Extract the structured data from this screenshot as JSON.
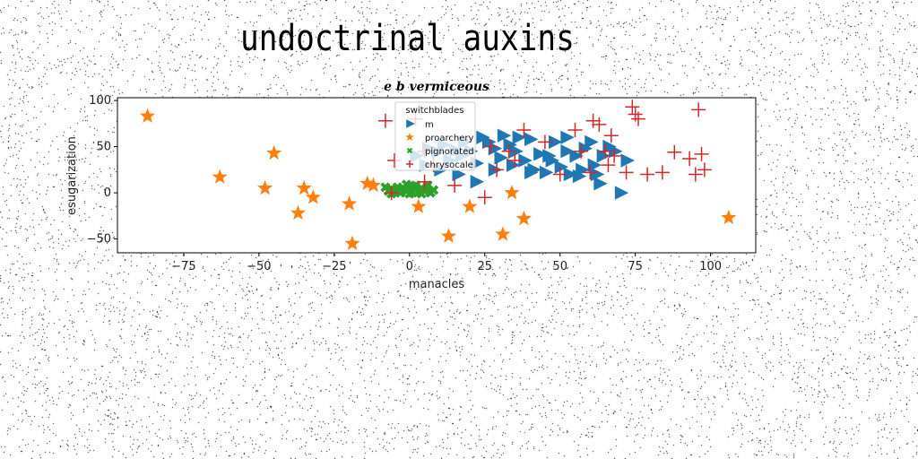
{
  "page": {
    "title": "undoctrinal auxins"
  },
  "chart_data": {
    "type": "scatter",
    "title": "e b vermiceous",
    "xlabel": "manacles",
    "ylabel": "esugarization",
    "xlim": [
      -97,
      115
    ],
    "ylim": [
      -65,
      103
    ],
    "xticks": [
      -75,
      -50,
      -25,
      0,
      25,
      50,
      75,
      100
    ],
    "yticks": [
      -50,
      0,
      50,
      100
    ],
    "xtick_labels": [
      "−75",
      "−50",
      "−25",
      "0",
      "25",
      "50",
      "75",
      "100"
    ],
    "ytick_labels": [
      "−50",
      "0",
      "50",
      "100"
    ],
    "grid": false,
    "legend": {
      "title": "switchblades",
      "position": "top-center"
    },
    "series": [
      {
        "name": "m",
        "marker": "triangle-right",
        "color": "#1f77b4",
        "points": [
          [
            2,
            40
          ],
          [
            6,
            48
          ],
          [
            9,
            44
          ],
          [
            11,
            52
          ],
          [
            13,
            35
          ],
          [
            15,
            46
          ],
          [
            17,
            40
          ],
          [
            18,
            55
          ],
          [
            20,
            45
          ],
          [
            22,
            32
          ],
          [
            24,
            60
          ],
          [
            26,
            55
          ],
          [
            28,
            48
          ],
          [
            30,
            38
          ],
          [
            31,
            62
          ],
          [
            33,
            52
          ],
          [
            35,
            45
          ],
          [
            36,
            60
          ],
          [
            38,
            35
          ],
          [
            40,
            58
          ],
          [
            41,
            25
          ],
          [
            43,
            42
          ],
          [
            45,
            22
          ],
          [
            47,
            35
          ],
          [
            48,
            55
          ],
          [
            50,
            28
          ],
          [
            52,
            60
          ],
          [
            53,
            20
          ],
          [
            55,
            40
          ],
          [
            57,
            25
          ],
          [
            58,
            48
          ],
          [
            60,
            55
          ],
          [
            61,
            30
          ],
          [
            62,
            20
          ],
          [
            64,
            40
          ],
          [
            66,
            50
          ],
          [
            68,
            45
          ],
          [
            70,
            0
          ],
          [
            72,
            35
          ],
          [
            5,
            30
          ],
          [
            10,
            25
          ],
          [
            16,
            20
          ],
          [
            22,
            12
          ],
          [
            28,
            25
          ],
          [
            34,
            30
          ],
          [
            40,
            22
          ],
          [
            46,
            40
          ],
          [
            52,
            45
          ],
          [
            56,
            18
          ],
          [
            63,
            10
          ]
        ]
      },
      {
        "name": "proarchery",
        "marker": "star",
        "color": "#ff7f0e",
        "points": [
          [
            -87,
            83
          ],
          [
            -63,
            17
          ],
          [
            -45,
            43
          ],
          [
            -48,
            5
          ],
          [
            -35,
            5
          ],
          [
            -32,
            -5
          ],
          [
            -37,
            -22
          ],
          [
            -20,
            -12
          ],
          [
            -14,
            10
          ],
          [
            -12,
            8
          ],
          [
            -19,
            -55
          ],
          [
            3,
            -15
          ],
          [
            13,
            -47
          ],
          [
            20,
            -15
          ],
          [
            31,
            -45
          ],
          [
            34,
            0
          ],
          [
            38,
            -28
          ],
          [
            106,
            -27
          ]
        ]
      },
      {
        "name": "pignorated",
        "marker": "x",
        "color": "#2ca02c",
        "points": [
          [
            -7,
            2
          ],
          [
            -6,
            4
          ],
          [
            -5,
            1
          ],
          [
            -4,
            6
          ],
          [
            -3,
            3
          ],
          [
            -2,
            5
          ],
          [
            -1,
            2
          ],
          [
            0,
            6
          ],
          [
            1,
            0
          ],
          [
            2,
            4
          ],
          [
            3,
            1
          ],
          [
            4,
            5
          ],
          [
            5,
            2
          ],
          [
            6,
            4
          ],
          [
            7,
            0
          ],
          [
            -8,
            6
          ],
          [
            -6,
            -1
          ],
          [
            -3,
            0
          ],
          [
            0,
            -1
          ],
          [
            2,
            8
          ],
          [
            4,
            -1
          ],
          [
            6,
            8
          ],
          [
            8,
            3
          ],
          [
            -1,
            9
          ],
          [
            1,
            7
          ]
        ]
      },
      {
        "name": "chrysocale",
        "marker": "plus",
        "color": "#d62728",
        "points": [
          [
            -8,
            78
          ],
          [
            -5,
            35
          ],
          [
            -6,
            0
          ],
          [
            2,
            80
          ],
          [
            5,
            45
          ],
          [
            8,
            30
          ],
          [
            5,
            12
          ],
          [
            15,
            8
          ],
          [
            25,
            -5
          ],
          [
            27,
            50
          ],
          [
            29,
            25
          ],
          [
            33,
            45
          ],
          [
            35,
            35
          ],
          [
            38,
            68
          ],
          [
            45,
            55
          ],
          [
            50,
            20
          ],
          [
            55,
            68
          ],
          [
            57,
            45
          ],
          [
            60,
            22
          ],
          [
            61,
            78
          ],
          [
            63,
            74
          ],
          [
            65,
            45
          ],
          [
            66,
            30
          ],
          [
            67,
            62
          ],
          [
            68,
            40
          ],
          [
            72,
            22
          ],
          [
            74,
            93
          ],
          [
            75,
            85
          ],
          [
            76,
            80
          ],
          [
            79,
            20
          ],
          [
            84,
            22
          ],
          [
            88,
            44
          ],
          [
            93,
            37
          ],
          [
            95,
            20
          ],
          [
            96,
            90
          ],
          [
            97,
            42
          ],
          [
            98,
            25
          ]
        ]
      }
    ]
  }
}
